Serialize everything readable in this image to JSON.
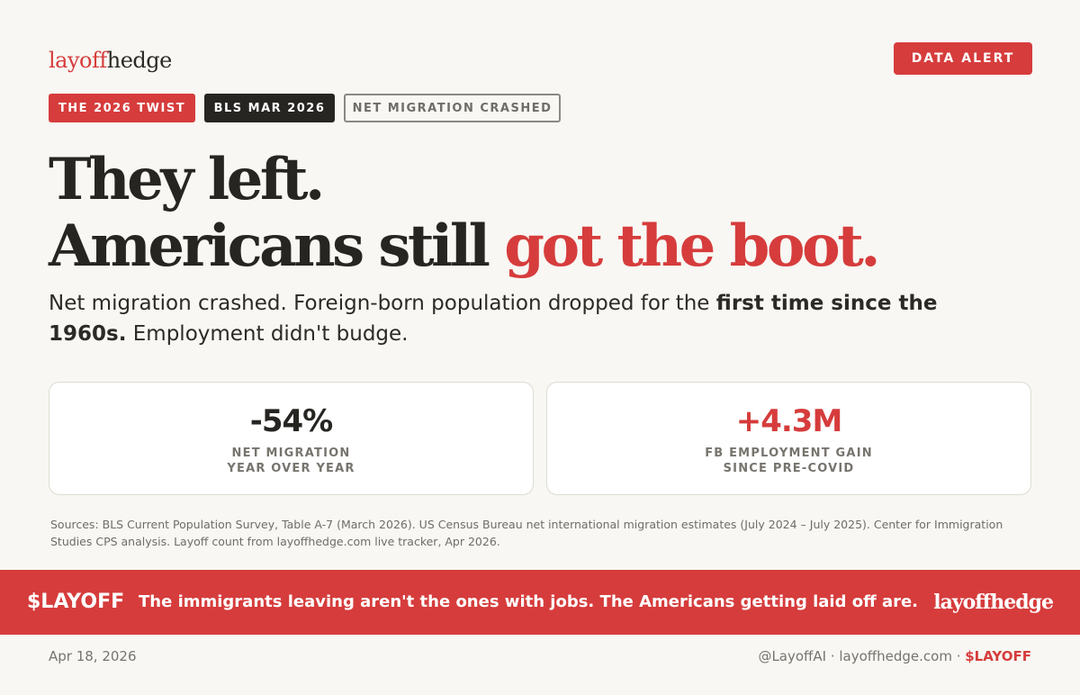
{
  "brand": {
    "logo_prefix": "layoff",
    "logo_suffix": "hedge",
    "accent_color": "#d63c3c",
    "dark_color": "#262522"
  },
  "alert_button": "DATA ALERT",
  "tags": [
    "THE 2026 TWIST",
    "BLS MAR 2026",
    "NET MIGRATION CRASHED"
  ],
  "headline": {
    "line1": "They left.",
    "line2_plain": "Americans still",
    "line2_accent": "got the boot."
  },
  "subhead": {
    "part1": "Net migration crashed. Foreign-born population dropped for the ",
    "bold": "first time since the 1960s.",
    "part2": " Employment didn't budge."
  },
  "stats": [
    {
      "value": "-54%",
      "label_line1": "NET MIGRATION",
      "label_line2": "YEAR OVER YEAR"
    },
    {
      "value": "+4.3M",
      "label_line1": "FB EMPLOYMENT GAIN",
      "label_line2": "SINCE PRE-COVID"
    }
  ],
  "sources": "Sources: BLS Current Population Survey, Table A-7 (March 2026). US Census Bureau net international migration estimates (July 2024 – July 2025). Center for Immigration Studies CPS analysis. Layoff count from layoffhedge.com live tracker, Apr 2026.",
  "banner": {
    "ticker": "$LAYOFF",
    "tagline": "The immigrants leaving aren't the ones with jobs. The Americans getting laid off are.",
    "logo": "layoffhedge"
  },
  "footer": {
    "date": "Apr 18, 2026",
    "handle_and_site": "@LayoffAI · layoffhedge.com · ",
    "ticker": "$LAYOFF"
  }
}
